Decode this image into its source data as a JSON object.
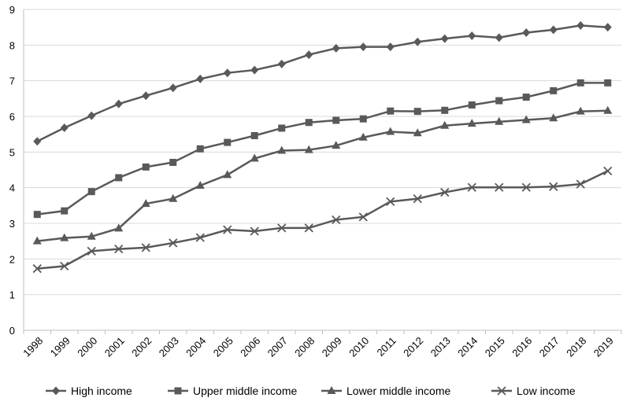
{
  "chart_data": {
    "type": "line",
    "title": "",
    "xlabel": "",
    "ylabel": "",
    "ylim": [
      0,
      9
    ],
    "yticks": [
      0,
      1,
      2,
      3,
      4,
      5,
      6,
      7,
      8,
      9
    ],
    "grid": "horizontal",
    "legend_position": "bottom",
    "categories": [
      "1998",
      "1999",
      "2000",
      "2001",
      "2002",
      "2003",
      "2004",
      "2005",
      "2006",
      "2007",
      "2008",
      "2009",
      "2010",
      "2011",
      "2012",
      "2013",
      "2014",
      "2015",
      "2016",
      "2017",
      "2018",
      "2019"
    ],
    "series": [
      {
        "name": "High income",
        "marker": "diamond",
        "values": [
          5.3,
          5.68,
          6.02,
          6.35,
          6.58,
          6.8,
          7.05,
          7.22,
          7.3,
          7.47,
          7.73,
          7.91,
          7.95,
          7.95,
          8.09,
          8.18,
          8.26,
          8.21,
          8.35,
          8.43,
          8.55,
          8.5
        ]
      },
      {
        "name": "Upper middle income",
        "marker": "square",
        "values": [
          3.25,
          3.35,
          3.89,
          4.28,
          4.58,
          4.71,
          5.09,
          5.27,
          5.46,
          5.67,
          5.83,
          5.89,
          5.93,
          6.15,
          6.14,
          6.17,
          6.32,
          6.44,
          6.54,
          6.72,
          6.94,
          6.94
        ]
      },
      {
        "name": "Lower middle income",
        "marker": "triangle",
        "values": [
          2.5,
          2.59,
          2.63,
          2.86,
          3.55,
          3.69,
          4.06,
          4.36,
          4.82,
          5.04,
          5.06,
          5.18,
          5.41,
          5.57,
          5.53,
          5.74,
          5.8,
          5.85,
          5.9,
          5.95,
          6.14,
          6.16
        ]
      },
      {
        "name": "Low income",
        "marker": "x",
        "values": [
          1.73,
          1.8,
          2.22,
          2.28,
          2.32,
          2.45,
          2.6,
          2.82,
          2.78,
          2.87,
          2.87,
          3.1,
          3.18,
          3.61,
          3.69,
          3.87,
          4.01,
          4.01,
          4.01,
          4.03,
          4.1,
          4.47
        ]
      }
    ]
  }
}
